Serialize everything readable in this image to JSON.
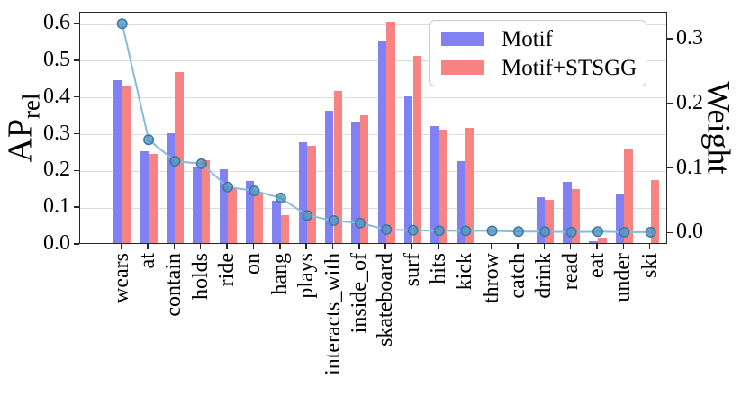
{
  "chart_data": {
    "type": "bar+line",
    "categories": [
      "wears",
      "at",
      "contain",
      "holds",
      "ride",
      "on",
      "hang",
      "plays",
      "interacts_with",
      "inside_of",
      "skateboard",
      "surf",
      "hits",
      "kick",
      "throw",
      "catch",
      "drink",
      "read",
      "eat",
      "under",
      "ski"
    ],
    "series": [
      {
        "name": "Motif",
        "type": "bar",
        "axis": "left",
        "color": "#8181f3",
        "values": [
          0.444,
          0.249,
          0.3,
          0.206,
          0.202,
          0.169,
          0.116,
          0.274,
          0.36,
          0.328,
          0.548,
          0.4,
          0.318,
          0.222,
          0,
          0,
          0.126,
          0.166,
          0.005,
          0.134,
          0
        ]
      },
      {
        "name": "Motif+STSGG",
        "type": "bar",
        "axis": "left",
        "color": "#f98282",
        "values": [
          0.426,
          0.242,
          0.466,
          0.225,
          0.152,
          0.137,
          0.076,
          0.264,
          0.413,
          0.348,
          0.603,
          0.51,
          0.309,
          0.313,
          0,
          0,
          0.118,
          0.146,
          0.014,
          0.254,
          0.172
        ]
      },
      {
        "name": "Weight",
        "type": "line",
        "axis": "right",
        "color": "#88badc",
        "marker_fill": "#4e94c0",
        "marker_edge": "#3a76a0",
        "values": [
          0.325,
          0.145,
          0.112,
          0.108,
          0.072,
          0.066,
          0.055,
          0.028,
          0.02,
          0.016,
          0.006,
          0.005,
          0.004,
          0.004,
          0.004,
          0.003,
          0.003,
          0.002,
          0.003,
          0.002,
          0.002
        ]
      }
    ],
    "left_axis": {
      "label_main": "AP",
      "label_sub": "rel",
      "ticks": [
        0.0,
        0.1,
        0.2,
        0.3,
        0.4,
        0.5,
        0.6
      ],
      "range": [
        0,
        0.632
      ],
      "tick_format_decimals": 1
    },
    "right_axis": {
      "label": "Weight",
      "ticks": [
        0.0,
        0.1,
        0.2,
        0.3
      ],
      "range": [
        -0.0177,
        0.342
      ],
      "tick_format_decimals": 1
    },
    "legend": {
      "entries": [
        "Motif",
        "Motif+STSGG"
      ],
      "position": "upper right"
    },
    "grid": true,
    "colors": {
      "grid": "#dcdcdc",
      "spine": "#262626",
      "tick": "#262626",
      "background": "#ffffff"
    }
  }
}
